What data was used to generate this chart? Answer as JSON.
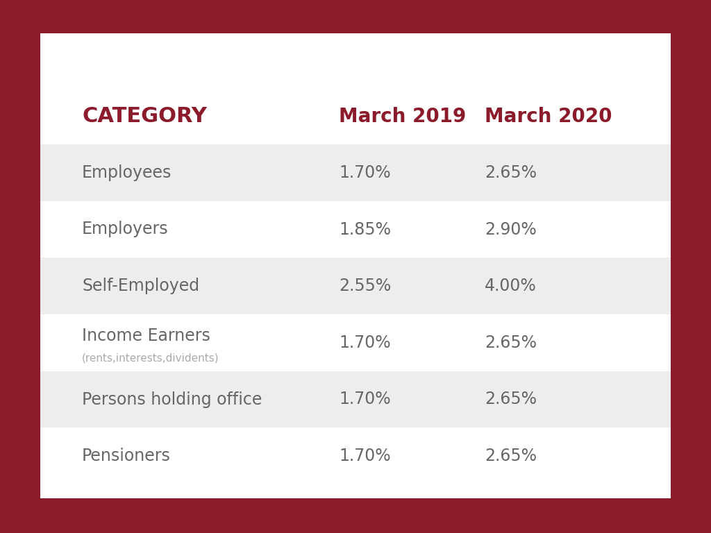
{
  "background_color": "#8B1A2A",
  "card_color": "#FFFFFF",
  "header_color": "#8B1A2A",
  "row_shaded_color": "#EEECEC",
  "row_white_color": "#FFFFFF",
  "text_dark": "#666666",
  "text_header": "#8B1A2A",
  "col_header": "CATEGORY",
  "col2_header": "March 2019",
  "col3_header": "March 2020",
  "rows": [
    {
      "category": "Employees",
      "subtitle": "",
      "march2019": "1.70%",
      "march2020": "2.65%",
      "shaded": true
    },
    {
      "category": "Employers",
      "subtitle": "",
      "march2019": "1.85%",
      "march2020": "2.90%",
      "shaded": false
    },
    {
      "category": "Self-Employed",
      "subtitle": "",
      "march2019": "2.55%",
      "march2020": "4.00%",
      "shaded": true
    },
    {
      "category": "Income Earners",
      "subtitle": "(rents,interests,dividents)",
      "march2019": "1.70%",
      "march2020": "2.65%",
      "shaded": false
    },
    {
      "category": "Persons holding office",
      "subtitle": "",
      "march2019": "1.70%",
      "march2020": "2.65%",
      "shaded": true
    },
    {
      "category": "Pensioners",
      "subtitle": "",
      "march2019": "1.70%",
      "march2020": "2.65%",
      "shaded": false
    }
  ]
}
